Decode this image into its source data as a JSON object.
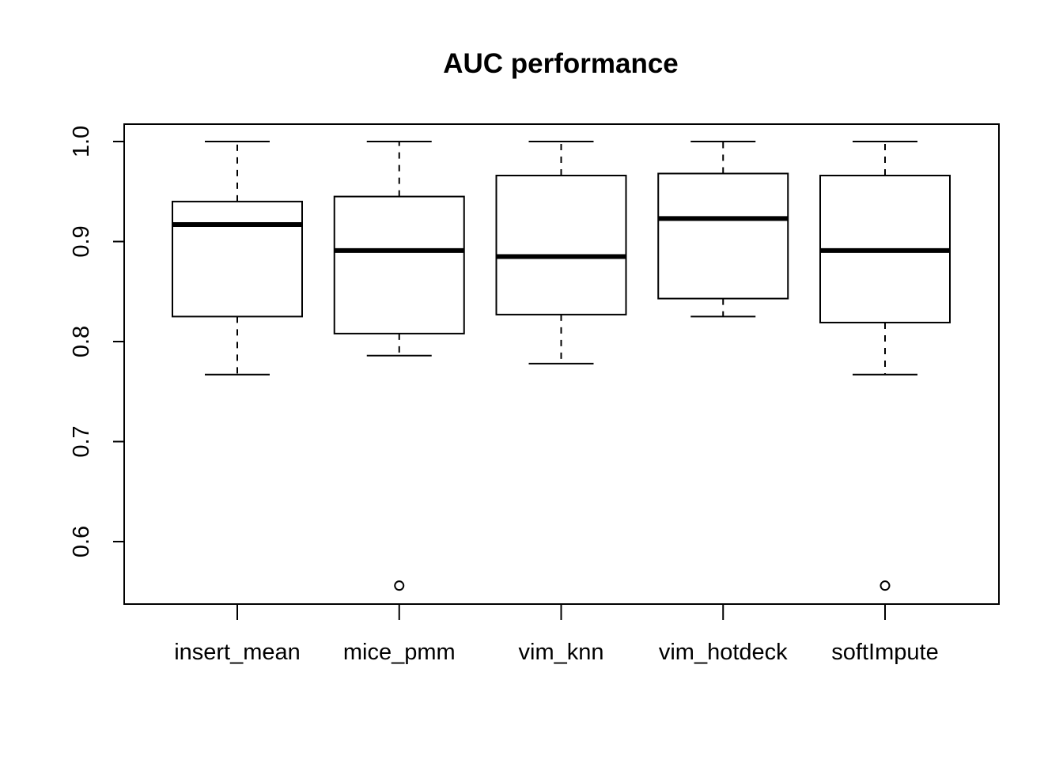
{
  "chart_data": {
    "type": "boxplot",
    "title": "AUC performance",
    "xlabel": "",
    "ylabel": "",
    "categories": [
      "insert_mean",
      "mice_pmm",
      "vim_knn",
      "vim_hotdeck",
      "softImpute"
    ],
    "ylim": [
      0.54,
      1.02
    ],
    "yticks": [
      0.6,
      0.7,
      0.8,
      0.9,
      1.0
    ],
    "ytick_labels": [
      "0.6",
      "0.7",
      "0.8",
      "0.9",
      "1.0"
    ],
    "boxes": [
      {
        "name": "insert_mean",
        "whisker_low": 0.767,
        "q1": 0.825,
        "median": 0.917,
        "q3": 0.94,
        "whisker_high": 1.0,
        "outliers": []
      },
      {
        "name": "mice_pmm",
        "whisker_low": 0.786,
        "q1": 0.808,
        "median": 0.891,
        "q3": 0.945,
        "whisker_high": 1.0,
        "outliers": [
          0.556
        ]
      },
      {
        "name": "vim_knn",
        "whisker_low": 0.778,
        "q1": 0.827,
        "median": 0.885,
        "q3": 0.966,
        "whisker_high": 1.0,
        "outliers": []
      },
      {
        "name": "vim_hotdeck",
        "whisker_low": 0.825,
        "q1": 0.843,
        "median": 0.923,
        "q3": 0.968,
        "whisker_high": 1.0,
        "outliers": []
      },
      {
        "name": "softImpute",
        "whisker_low": 0.767,
        "q1": 0.819,
        "median": 0.891,
        "q3": 0.966,
        "whisker_high": 1.0,
        "outliers": [
          0.556
        ]
      }
    ],
    "grid": false,
    "legend": "none",
    "colors": {
      "box_fill": "#ffffff",
      "stroke": "#000000",
      "background": "#ffffff"
    }
  }
}
